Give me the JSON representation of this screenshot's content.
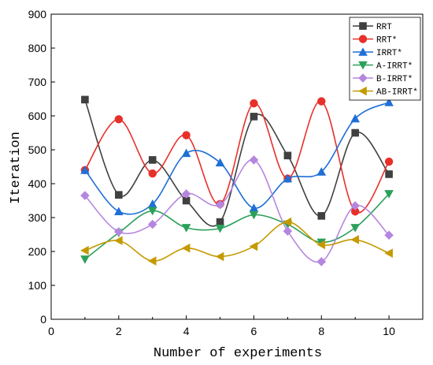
{
  "chart_data": {
    "type": "line",
    "xlabel": "Number of experiments",
    "ylabel": "Iteration",
    "xlim": [
      0,
      11
    ],
    "ylim": [
      0,
      900
    ],
    "xticks": [
      0,
      2,
      4,
      6,
      8,
      10
    ],
    "yticks": [
      0,
      100,
      200,
      300,
      400,
      500,
      600,
      700,
      800,
      900
    ],
    "legend_position": "top-right",
    "grid": false,
    "x": [
      1,
      2,
      3,
      4,
      5,
      6,
      7,
      8,
      9,
      10
    ],
    "series": [
      {
        "name": "RRT",
        "color": "#404040",
        "marker": "square",
        "values": [
          648,
          367,
          470,
          350,
          287,
          598,
          483,
          305,
          550,
          428
        ]
      },
      {
        "name": "RRT*",
        "color": "#e8302a",
        "marker": "circle",
        "values": [
          440,
          590,
          430,
          543,
          340,
          637,
          415,
          643,
          318,
          465
        ]
      },
      {
        "name": "IRRT*",
        "color": "#1f6fd6",
        "marker": "triangle-up",
        "values": [
          440,
          318,
          340,
          490,
          462,
          328,
          415,
          435,
          592,
          640
        ]
      },
      {
        "name": "A-IRRT*",
        "color": "#2ca05a",
        "marker": "triangle-down",
        "values": [
          177,
          255,
          320,
          270,
          268,
          308,
          280,
          227,
          270,
          370
        ]
      },
      {
        "name": "B-IRRT*",
        "color": "#b586e0",
        "marker": "diamond",
        "values": [
          365,
          258,
          280,
          370,
          338,
          470,
          260,
          170,
          335,
          248
        ]
      },
      {
        "name": "AB-IRRT*",
        "color": "#c49a00",
        "marker": "triangle-left",
        "values": [
          203,
          232,
          172,
          210,
          185,
          215,
          287,
          220,
          235,
          195
        ]
      }
    ]
  }
}
